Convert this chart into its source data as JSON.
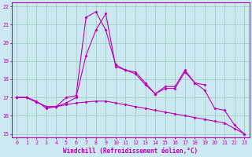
{
  "xlabel": "Windchill (Refroidissement éolien,°C)",
  "bg_color": "#cce8f0",
  "line_color": "#bb00bb",
  "grid_color": "#99ccbb",
  "x_values": [
    0,
    1,
    2,
    3,
    4,
    5,
    6,
    7,
    8,
    9,
    10,
    11,
    12,
    13,
    14,
    15,
    16,
    17,
    18,
    19,
    20,
    21,
    22,
    23
  ],
  "series1_y": [
    17.0,
    17.0,
    16.75,
    16.5,
    16.5,
    16.6,
    16.7,
    16.75,
    16.8,
    16.8,
    16.7,
    16.6,
    16.5,
    16.4,
    16.3,
    16.2,
    16.1,
    16.0,
    15.9,
    15.8,
    15.7,
    15.6,
    15.3,
    15.0
  ],
  "series2_y": [
    17.0,
    17.0,
    16.75,
    16.5,
    16.5,
    16.7,
    17.0,
    19.3,
    20.7,
    21.6,
    18.7,
    18.5,
    18.3,
    17.7,
    17.2,
    17.5,
    17.5,
    18.4,
    17.8,
    17.4,
    16.4,
    16.3,
    15.5,
    15.0
  ],
  "series3_x": [
    0,
    1,
    2,
    3,
    4,
    5,
    6,
    7,
    8,
    9,
    10,
    11,
    12,
    13,
    14,
    15,
    16,
    17,
    18,
    19
  ],
  "series3_y": [
    17.0,
    17.0,
    16.8,
    16.4,
    16.5,
    17.0,
    17.1,
    21.4,
    21.7,
    20.7,
    18.8,
    18.5,
    18.4,
    17.8,
    17.2,
    17.6,
    17.6,
    18.5,
    17.8,
    17.7
  ],
  "ylim": [
    14.8,
    22.2
  ],
  "xlim": [
    -0.5,
    23.5
  ],
  "yticks": [
    15,
    16,
    17,
    18,
    19,
    20,
    21,
    22
  ],
  "xticks": [
    0,
    1,
    2,
    3,
    4,
    5,
    6,
    7,
    8,
    9,
    10,
    11,
    12,
    13,
    14,
    15,
    16,
    17,
    18,
    19,
    20,
    21,
    22,
    23
  ],
  "tick_fontsize": 4.8,
  "xlabel_fontsize": 5.5,
  "lw": 0.8,
  "ms": 2.0
}
